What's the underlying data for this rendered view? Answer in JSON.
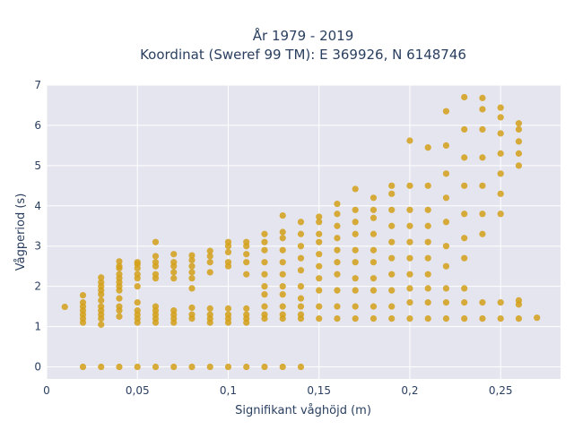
{
  "chart_data": {
    "type": "scatter",
    "title_line1": "År 1979 - 2019",
    "title_line2": "Koordinat (Sweref 99 TM): E 369926, N 6148746",
    "xlabel": "Signifikant våghöjd (m)",
    "ylabel": "Vågperiod (s)",
    "xlim": [
      0,
      0.283
    ],
    "ylim": [
      -0.3,
      7
    ],
    "x_ticks": [
      0,
      0.05,
      0.1,
      0.15,
      0.2,
      0.25
    ],
    "x_tick_labels": [
      "0",
      "0,05",
      "0,1",
      "0,15",
      "0,2",
      "0,25"
    ],
    "y_ticks": [
      0,
      1,
      2,
      3,
      4,
      5,
      6,
      7
    ],
    "y_tick_labels": [
      "0",
      "1",
      "2",
      "3",
      "4",
      "5",
      "6",
      "7"
    ],
    "grid": true,
    "marker_color": "#d4a017",
    "plot_bg": "#e5e5ef",
    "series": [
      {
        "x": [
          0.01,
          0.02,
          0.02,
          0.02,
          0.02,
          0.02,
          0.02,
          0.02,
          0.02,
          0.03,
          0.03,
          0.03,
          0.03,
          0.03,
          0.03,
          0.03,
          0.03,
          0.03,
          0.03,
          0.03,
          0.03,
          0.04,
          0.04,
          0.04,
          0.04,
          0.04,
          0.04,
          0.04,
          0.04,
          0.04,
          0.04,
          0.04,
          0.04,
          0.04,
          0.05,
          0.05,
          0.05,
          0.05,
          0.05,
          0.05,
          0.05,
          0.05,
          0.05,
          0.05,
          0.05,
          0.05,
          0.06,
          0.06,
          0.06,
          0.06,
          0.06,
          0.06,
          0.06,
          0.06,
          0.06,
          0.06,
          0.06,
          0.06,
          0.07,
          0.07,
          0.07,
          0.07,
          0.07,
          0.07,
          0.07,
          0.07,
          0.07,
          0.07,
          0.08,
          0.08,
          0.08,
          0.08,
          0.08,
          0.08,
          0.08,
          0.08,
          0.08,
          0.08,
          0.09,
          0.09,
          0.09,
          0.09,
          0.09,
          0.09,
          0.09,
          0.09,
          0.09,
          0.1,
          0.1,
          0.1,
          0.1,
          0.1,
          0.1,
          0.1,
          0.1,
          0.1,
          0.1,
          0.11,
          0.11,
          0.11,
          0.11,
          0.11,
          0.11,
          0.11,
          0.11,
          0.11,
          0.11,
          0.12,
          0.12,
          0.12,
          0.12,
          0.12,
          0.12,
          0.12,
          0.12,
          0.12,
          0.12,
          0.12,
          0.13,
          0.13,
          0.13,
          0.13,
          0.13,
          0.13,
          0.13,
          0.13,
          0.13,
          0.13,
          0.13,
          0.13,
          0.14,
          0.14,
          0.14,
          0.14,
          0.14,
          0.14,
          0.14,
          0.14,
          0.14,
          0.14,
          0.14,
          0.15,
          0.15,
          0.15,
          0.15,
          0.15,
          0.15,
          0.15,
          0.15,
          0.15,
          0.15,
          0.16,
          0.16,
          0.16,
          0.16,
          0.16,
          0.16,
          0.16,
          0.16,
          0.16,
          0.16,
          0.17,
          0.17,
          0.17,
          0.17,
          0.17,
          0.17,
          0.17,
          0.17,
          0.17,
          0.17,
          0.18,
          0.18,
          0.18,
          0.18,
          0.18,
          0.18,
          0.18,
          0.18,
          0.18,
          0.18,
          0.19,
          0.19,
          0.19,
          0.19,
          0.19,
          0.19,
          0.19,
          0.19,
          0.19,
          0.19,
          0.2,
          0.2,
          0.2,
          0.2,
          0.2,
          0.2,
          0.2,
          0.2,
          0.2,
          0.2,
          0.21,
          0.21,
          0.21,
          0.21,
          0.21,
          0.21,
          0.21,
          0.21,
          0.21,
          0.21,
          0.22,
          0.22,
          0.22,
          0.22,
          0.22,
          0.22,
          0.22,
          0.22,
          0.22,
          0.22,
          0.23,
          0.23,
          0.23,
          0.23,
          0.23,
          0.23,
          0.23,
          0.23,
          0.23,
          0.23,
          0.24,
          0.24,
          0.24,
          0.24,
          0.24,
          0.24,
          0.24,
          0.24,
          0.24,
          0.25,
          0.25,
          0.25,
          0.25,
          0.25,
          0.25,
          0.25,
          0.25,
          0.25,
          0.26,
          0.26,
          0.26,
          0.26,
          0.26,
          0.26,
          0.26,
          0.26,
          0.27
        ],
        "y": [
          1.49,
          0,
          1.1,
          1.2,
          1.3,
          1.4,
          1.5,
          1.6,
          1.78,
          0,
          1.05,
          1.2,
          1.3,
          1.4,
          1.5,
          1.65,
          1.8,
          1.9,
          2.0,
          2.1,
          2.22,
          0,
          1.25,
          1.4,
          1.5,
          1.7,
          1.9,
          2.0,
          2.1,
          2.2,
          2.3,
          2.45,
          2.5,
          2.62,
          0,
          1.1,
          1.2,
          1.3,
          1.4,
          1.6,
          2.0,
          2.2,
          2.3,
          2.45,
          2.55,
          2.6,
          0,
          1.1,
          1.2,
          1.3,
          1.4,
          1.5,
          2.2,
          2.3,
          2.5,
          2.6,
          2.75,
          3.1,
          0,
          1.1,
          1.2,
          1.3,
          1.4,
          2.2,
          2.35,
          2.5,
          2.6,
          2.8,
          0,
          1.2,
          1.3,
          1.47,
          1.95,
          2.2,
          2.35,
          2.5,
          2.65,
          2.77,
          0,
          1.1,
          1.2,
          1.3,
          1.45,
          2.35,
          2.6,
          2.75,
          2.88,
          0,
          1.1,
          1.2,
          1.3,
          1.45,
          2.5,
          2.6,
          2.85,
          3.0,
          3.1,
          0,
          1.1,
          1.2,
          1.3,
          1.45,
          2.3,
          2.6,
          2.8,
          3.0,
          3.1,
          0,
          1.2,
          1.3,
          1.5,
          1.8,
          2.0,
          2.3,
          2.6,
          2.9,
          3.1,
          3.3,
          0,
          1.2,
          1.3,
          1.5,
          1.8,
          2.0,
          2.3,
          2.6,
          2.9,
          3.2,
          3.35,
          3.76,
          0,
          1.2,
          1.3,
          1.5,
          1.7,
          2.0,
          2.4,
          2.7,
          3.0,
          3.3,
          3.6,
          1.2,
          1.5,
          1.9,
          2.2,
          2.5,
          2.8,
          3.1,
          3.3,
          3.6,
          3.73,
          1.2,
          1.5,
          1.9,
          2.3,
          2.6,
          2.9,
          3.2,
          3.5,
          3.8,
          4.05,
          1.2,
          1.5,
          1.9,
          2.2,
          2.6,
          2.9,
          3.3,
          3.6,
          3.9,
          4.42,
          1.2,
          1.5,
          1.9,
          2.2,
          2.6,
          2.9,
          3.3,
          3.7,
          3.9,
          4.2,
          1.2,
          1.5,
          1.9,
          2.3,
          2.7,
          3.1,
          3.5,
          3.9,
          4.3,
          4.5,
          1.2,
          1.6,
          1.95,
          2.3,
          2.7,
          3.1,
          3.5,
          3.9,
          4.5,
          5.62,
          1.2,
          1.6,
          1.95,
          2.3,
          2.7,
          3.1,
          3.5,
          3.9,
          4.5,
          5.45,
          1.2,
          1.6,
          1.95,
          2.5,
          3.0,
          3.6,
          4.2,
          4.8,
          5.5,
          6.35,
          1.2,
          1.6,
          1.95,
          2.7,
          3.2,
          3.8,
          4.5,
          5.2,
          5.9,
          6.7,
          1.2,
          1.6,
          3.3,
          3.8,
          4.5,
          5.2,
          5.9,
          6.4,
          6.68,
          1.2,
          1.6,
          3.8,
          4.3,
          4.8,
          5.3,
          5.8,
          6.2,
          6.44,
          1.2,
          1.55,
          1.65,
          5.0,
          5.3,
          5.6,
          5.9,
          6.05,
          1.22
        ]
      }
    ]
  }
}
